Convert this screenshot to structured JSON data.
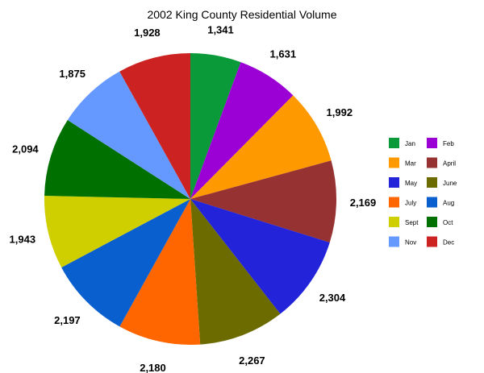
{
  "chart_data": {
    "type": "pie",
    "title": "2002 King County Residential Volume",
    "categories": [
      "Jan",
      "Feb",
      "Mar",
      "April",
      "May",
      "June",
      "July",
      "Aug",
      "Sept",
      "Oct",
      "Nov",
      "Dec"
    ],
    "values": [
      1341,
      1631,
      1992,
      2169,
      2304,
      2267,
      2180,
      2197,
      1943,
      2094,
      1875,
      1928
    ],
    "data_labels": [
      "1,341",
      "1,631",
      "1,992",
      "2,169",
      "2,304",
      "2,267",
      "2,180",
      "2,197",
      "1,943",
      "2,094",
      "1,875",
      "1,928"
    ],
    "colors": [
      "#0a9a3a",
      "#9b00d4",
      "#ff9900",
      "#973232",
      "#2323d9",
      "#6b6b00",
      "#ff6600",
      "#0a5fcf",
      "#cfcf00",
      "#007000",
      "#6699ff",
      "#cc2222"
    ],
    "legend_position": "right",
    "legend_order": [
      "Jan",
      "Feb",
      "Mar",
      "April",
      "May",
      "June",
      "July",
      "Aug",
      "Sept",
      "Oct",
      "Nov",
      "Dec"
    ]
  }
}
